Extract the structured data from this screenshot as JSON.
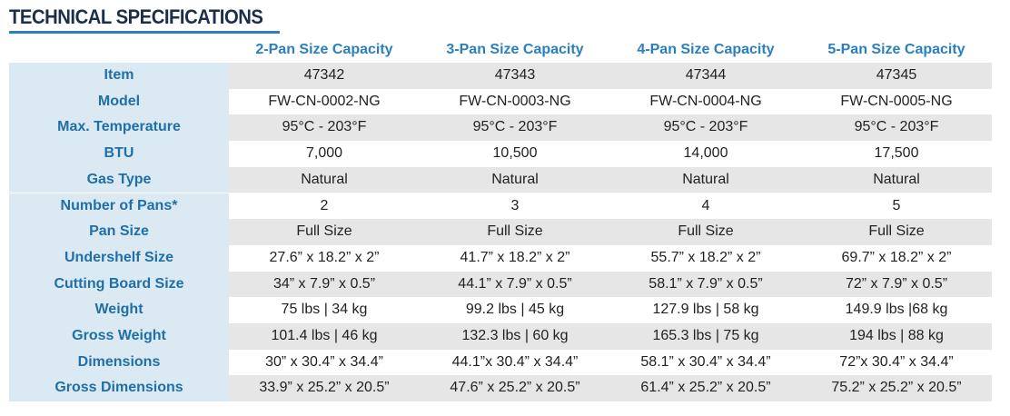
{
  "title": "TECHNICAL SPECIFICATIONS",
  "table": {
    "columns": [
      "2-Pan Size Capacity",
      "3-Pan Size Capacity",
      "4-Pan Size Capacity",
      "5-Pan Size Capacity"
    ],
    "rows": [
      [
        "Item",
        "47342",
        "47343",
        "47344",
        "47345"
      ],
      [
        "Model",
        "FW-CN-0002-NG",
        "FW-CN-0003-NG",
        "FW-CN-0004-NG",
        "FW-CN-0005-NG"
      ],
      [
        "Max. Temperature",
        "95°C - 203°F",
        "95°C - 203°F",
        "95°C - 203°F",
        "95°C - 203°F"
      ],
      [
        "BTU",
        "7,000",
        "10,500",
        "14,000",
        "17,500"
      ],
      [
        "Gas Type",
        "Natural",
        "Natural",
        "Natural",
        "Natural"
      ],
      [
        "Number of Pans*",
        "2",
        "3",
        "4",
        "5"
      ],
      [
        "Pan Size",
        "Full Size",
        "Full Size",
        "Full Size",
        "Full Size"
      ],
      [
        "Undershelf Size",
        "27.6” x 18.2” x 2”",
        "41.7” x 18.2” x 2”",
        "55.7” x 18.2” x 2”",
        "69.7” x 18.2” x 2”"
      ],
      [
        "Cutting Board Size",
        "34” x 7.9” x 0.5”",
        "44.1” x 7.9” x 0.5”",
        "58.1” x 7.9” x 0.5”",
        "72” x 7.9” x 0.5”"
      ],
      [
        "Weight",
        "75 lbs | 34 kg",
        "99.2 lbs | 45 kg",
        "127.9 lbs | 58 kg",
        "149.9 lbs |68 kg"
      ],
      [
        "Gross Weight",
        "101.4 lbs | 46 kg",
        "132.3 lbs | 60 kg",
        "165.3 lbs | 75 kg",
        "194 lbs | 88 kg"
      ],
      [
        "Dimensions",
        "30” x 30.4” x 34.4”",
        "44.1”x 30.4” x 34.4”",
        "58.1” x 30.4” x 34.4”",
        "72”x 30.4” x 34.4”"
      ],
      [
        "Gross Dimensions",
        "33.9” x 25.2” x 20.5”",
        "47.6” x 25.2” x 20.5”",
        "61.4” x 25.2” x 20.5”",
        "75.2” x 25.2” x 20.5”"
      ]
    ]
  }
}
